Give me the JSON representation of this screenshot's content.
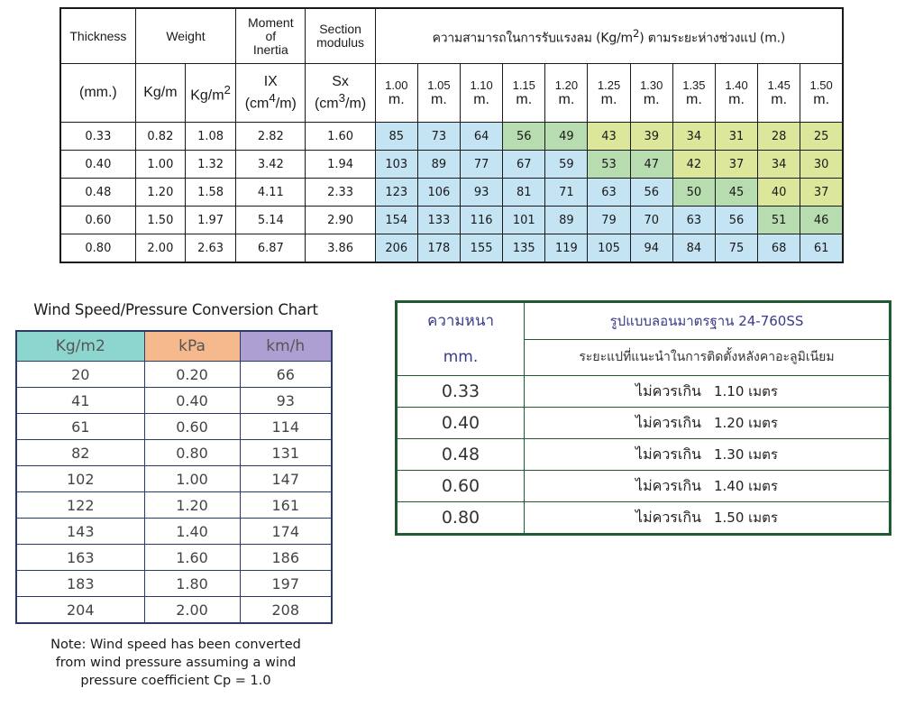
{
  "load_table": {
    "headers": {
      "thickness": "Thickness",
      "weight": "Weight",
      "moment": "Moment of Inertia",
      "moment_lines": [
        "Moment",
        "of",
        "Inertia"
      ],
      "section": "Section modulus",
      "section_lines": [
        "Section",
        "modulus"
      ],
      "capacity_prefix": "ความสามารถในการรับแรงลม (Kg/m",
      "capacity_sup": "2",
      "capacity_suffix": ") ตามระยะห่างช่วงแป (m.)",
      "unit_mm": "(mm.)",
      "unit_kgm": "Kg/m",
      "unit_kgm2": "Kg/m",
      "unit_kgm2_sup": "2",
      "ix_label": "IX",
      "ix_unit_pre": "(cm",
      "ix_unit_sup": "4",
      "ix_unit_post": "/m)",
      "sx_label": "Sx",
      "sx_unit_pre": "(cm",
      "sx_unit_sup": "3",
      "sx_unit_post": "/m)",
      "spans": [
        "1.00",
        "1.05",
        "1.10",
        "1.15",
        "1.20",
        "1.25",
        "1.30",
        "1.35",
        "1.40",
        "1.45",
        "1.50"
      ],
      "span_unit": "m."
    },
    "rows": [
      {
        "thickness": "0.33",
        "kgm": "0.82",
        "kgm2": "1.08",
        "ix": "2.82",
        "sx": "1.60",
        "values": [
          "85",
          "73",
          "64",
          "56",
          "49",
          "43",
          "39",
          "34",
          "31",
          "28",
          "25"
        ]
      },
      {
        "thickness": "0.40",
        "kgm": "1.00",
        "kgm2": "1.32",
        "ix": "3.42",
        "sx": "1.94",
        "values": [
          "103",
          "89",
          "77",
          "67",
          "59",
          "53",
          "47",
          "42",
          "37",
          "34",
          "30"
        ]
      },
      {
        "thickness": "0.48",
        "kgm": "1.20",
        "kgm2": "1.58",
        "ix": "4.11",
        "sx": "2.33",
        "values": [
          "123",
          "106",
          "93",
          "81",
          "71",
          "63",
          "56",
          "50",
          "45",
          "40",
          "37"
        ]
      },
      {
        "thickness": "0.60",
        "kgm": "1.50",
        "kgm2": "1.97",
        "ix": "5.14",
        "sx": "2.90",
        "values": [
          "154",
          "133",
          "116",
          "101",
          "89",
          "79",
          "70",
          "63",
          "56",
          "51",
          "46"
        ]
      },
      {
        "thickness": "0.80",
        "kgm": "2.00",
        "kgm2": "2.63",
        "ix": "6.87",
        "sx": "3.86",
        "values": [
          "206",
          "178",
          "155",
          "135",
          "119",
          "105",
          "94",
          "84",
          "75",
          "68",
          "61"
        ]
      }
    ],
    "cell_colors": {
      "blue": "#c4e3f3",
      "green": "#b7dcaf",
      "yellow": "#dde79b"
    },
    "cell_color_map": [
      [
        "b",
        "b",
        "b",
        "g",
        "g",
        "y",
        "y",
        "y",
        "y",
        "y",
        "y"
      ],
      [
        "b",
        "b",
        "b",
        "b",
        "b",
        "g",
        "g",
        "y",
        "y",
        "y",
        "y"
      ],
      [
        "b",
        "b",
        "b",
        "b",
        "b",
        "b",
        "b",
        "g",
        "g",
        "y",
        "y"
      ],
      [
        "b",
        "b",
        "b",
        "b",
        "b",
        "b",
        "b",
        "b",
        "b",
        "g",
        "g"
      ],
      [
        "b",
        "b",
        "b",
        "b",
        "b",
        "b",
        "b",
        "b",
        "b",
        "b",
        "b"
      ]
    ]
  },
  "wind_chart": {
    "title": "Wind Speed/Pressure Conversion Chart",
    "columns": [
      "Kg/m2",
      "kPa",
      "km/h"
    ],
    "column_colors": [
      "#8dd6cf",
      "#f6b98d",
      "#ad9fd1"
    ],
    "rows": [
      [
        "20",
        "0.20",
        "66"
      ],
      [
        "41",
        "0.40",
        "93"
      ],
      [
        "61",
        "0.60",
        "114"
      ],
      [
        "82",
        "0.80",
        "131"
      ],
      [
        "102",
        "1.00",
        "147"
      ],
      [
        "122",
        "1.20",
        "161"
      ],
      [
        "143",
        "1.40",
        "174"
      ],
      [
        "163",
        "1.60",
        "186"
      ],
      [
        "183",
        "1.80",
        "197"
      ],
      [
        "204",
        "2.00",
        "208"
      ]
    ],
    "note_lines": [
      "Note: Wind speed has been converted",
      "from wind pressure assuming a wind",
      "pressure coefficient Cp = 1.0"
    ]
  },
  "span_table": {
    "thickness_label": "ความหนา",
    "thickness_unit": "mm.",
    "title": "รูปแบบลอนมาตรฐาน 24-760SS",
    "subtitle": "ระยะแปที่แนะนำในการติดตั้งหลังคาอะลูมิเนียม",
    "rows": [
      {
        "thickness": "0.33",
        "prefix": "ไม่ควรเกิน",
        "value": "1.10 เมตร"
      },
      {
        "thickness": "0.40",
        "prefix": "ไม่ควรเกิน",
        "value": "1.20 เมตร"
      },
      {
        "thickness": "0.48",
        "prefix": "ไม่ควรเกิน",
        "value": "1.30 เมตร"
      },
      {
        "thickness": "0.60",
        "prefix": "ไม่ควรเกิน",
        "value": "1.40 เมตร"
      },
      {
        "thickness": "0.80",
        "prefix": "ไม่ควรเกิน",
        "value": "1.50 เมตร"
      }
    ]
  }
}
